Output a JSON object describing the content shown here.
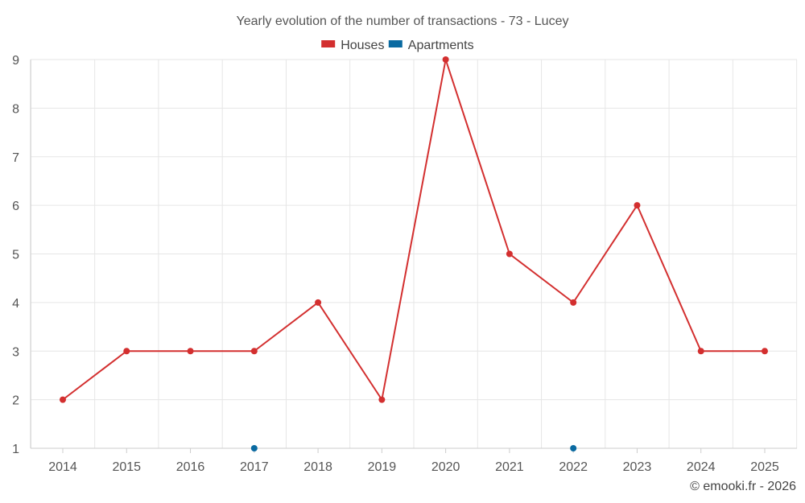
{
  "chart_data": {
    "type": "line",
    "title": "Yearly evolution of the number of transactions - 73 - Lucey",
    "credit": "© emooki.fr - 2026",
    "x": [
      "2014",
      "2015",
      "2016",
      "2017",
      "2018",
      "2019",
      "2020",
      "2021",
      "2022",
      "2023",
      "2024",
      "2025"
    ],
    "ylim": [
      1,
      9
    ],
    "yticks": [
      1,
      2,
      3,
      4,
      5,
      6,
      7,
      8,
      9
    ],
    "grid": true,
    "legend_position": "top-center",
    "series": [
      {
        "name": "Houses",
        "color": "#d32f2f",
        "values": [
          2,
          3,
          3,
          3,
          4,
          2,
          9,
          5,
          4,
          6,
          3,
          3
        ]
      },
      {
        "name": "Apartments",
        "color": "#0a6aa1",
        "values": [
          null,
          null,
          null,
          1,
          null,
          null,
          null,
          null,
          1,
          null,
          null,
          null
        ]
      }
    ]
  }
}
